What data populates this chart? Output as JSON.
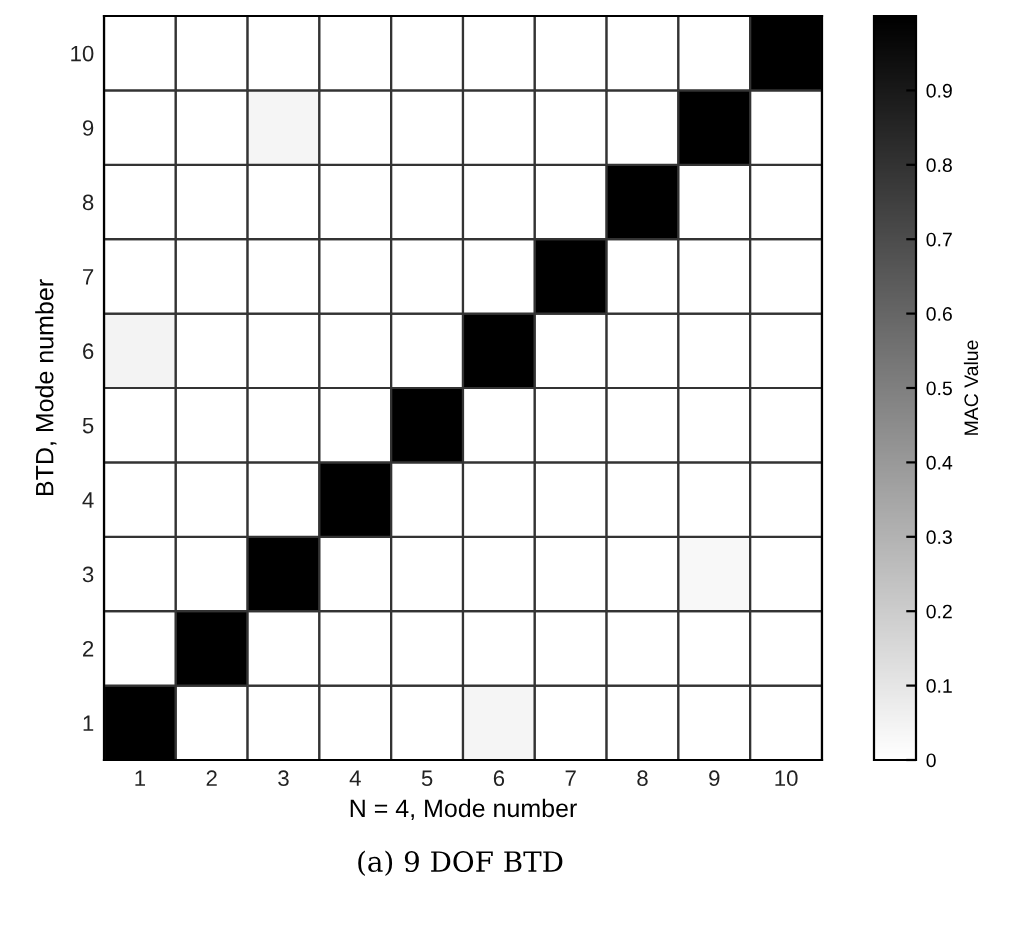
{
  "chart_data": {
    "type": "heatmap",
    "xlabel": "N = 4, Mode number",
    "ylabel": "BTD, Mode number",
    "clabel": "MAC Value",
    "categories": [
      "1",
      "2",
      "3",
      "4",
      "5",
      "6",
      "7",
      "8",
      "9",
      "10"
    ],
    "y_categories": [
      "10",
      "9",
      "8",
      "7",
      "6",
      "5",
      "4",
      "3",
      "2",
      "1"
    ],
    "cells": [
      [
        0,
        0,
        0,
        0,
        0,
        0,
        0,
        0,
        0,
        1
      ],
      [
        0,
        0,
        0.04,
        0,
        0,
        0,
        0,
        0,
        1,
        0
      ],
      [
        0,
        0,
        0,
        0,
        0,
        0,
        0,
        1,
        0,
        0
      ],
      [
        0,
        0,
        0,
        0,
        0,
        0,
        1,
        0,
        0,
        0
      ],
      [
        0.05,
        0,
        0,
        0,
        0,
        1,
        0,
        0,
        0,
        0
      ],
      [
        0,
        0,
        0,
        0,
        1,
        0,
        0,
        0,
        0,
        0
      ],
      [
        0,
        0,
        0,
        1,
        0,
        0,
        0,
        0,
        0,
        0
      ],
      [
        0,
        0,
        1,
        0,
        0,
        0,
        0,
        0,
        0.03,
        0
      ],
      [
        0,
        1,
        0,
        0,
        0,
        0,
        0,
        0,
        0,
        0
      ],
      [
        1,
        0,
        0,
        0,
        0,
        0.04,
        0,
        0,
        0,
        0
      ]
    ],
    "clim": [
      0,
      1
    ],
    "cticks": [
      0,
      0.1,
      0.2,
      0.3,
      0.4,
      0.5,
      0.6,
      0.7,
      0.8,
      0.9
    ],
    "annotations": [
      "(a) 9 DOF BTD"
    ]
  }
}
